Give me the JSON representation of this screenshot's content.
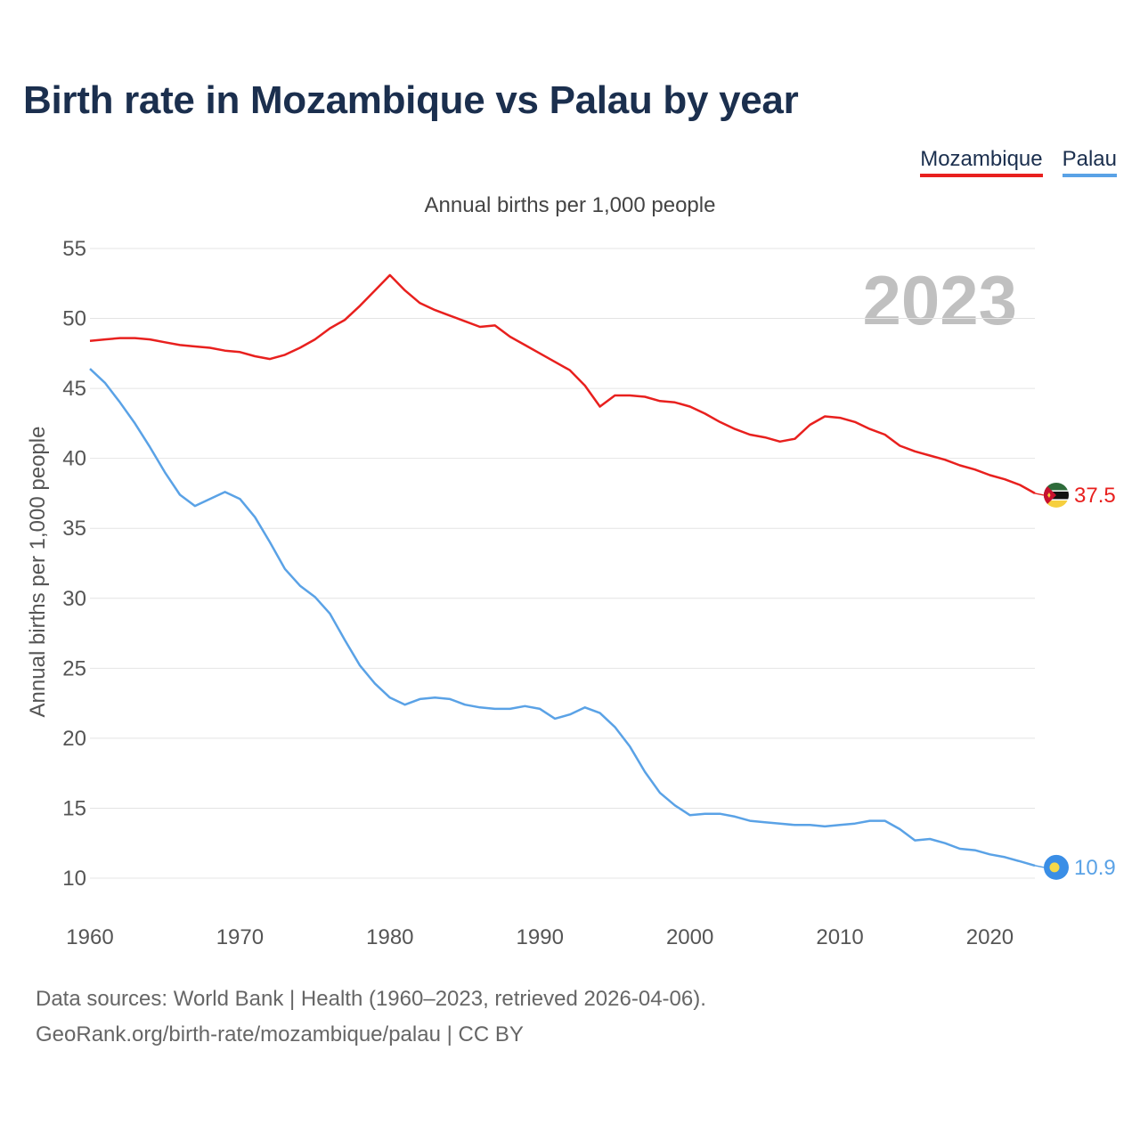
{
  "title": "Birth rate in Mozambique vs Palau by year",
  "subtitle": "Annual births per 1,000 people",
  "year_label": "2023",
  "legend": [
    {
      "label": "Mozambique",
      "color": "#e8201e"
    },
    {
      "label": "Palau",
      "color": "#5aa2e6"
    }
  ],
  "source_line1": "Data sources: World Bank | Health (1960–2023, retrieved 2026-04-06).",
  "source_line2": "GeoRank.org/birth-rate/mozambique/palau | CC BY",
  "chart_data": {
    "type": "line",
    "title": "Birth rate in Mozambique vs Palau by year",
    "xlabel": "",
    "ylabel": "Annual births per 1,000 people",
    "xlim": [
      1960,
      2023
    ],
    "ylim": [
      10,
      55
    ],
    "x_ticks": [
      1960,
      1970,
      1980,
      1990,
      2000,
      2010,
      2020
    ],
    "y_ticks": [
      10,
      15,
      20,
      25,
      30,
      35,
      40,
      45,
      50,
      55
    ],
    "grid": true,
    "legend_position": "top-right",
    "x": [
      1960,
      1961,
      1962,
      1963,
      1964,
      1965,
      1966,
      1967,
      1968,
      1969,
      1970,
      1971,
      1972,
      1973,
      1974,
      1975,
      1976,
      1977,
      1978,
      1979,
      1980,
      1981,
      1982,
      1983,
      1984,
      1985,
      1986,
      1987,
      1988,
      1989,
      1990,
      1991,
      1992,
      1993,
      1994,
      1995,
      1996,
      1997,
      1998,
      1999,
      2000,
      2001,
      2002,
      2003,
      2004,
      2005,
      2006,
      2007,
      2008,
      2009,
      2010,
      2011,
      2012,
      2013,
      2014,
      2015,
      2016,
      2017,
      2018,
      2019,
      2020,
      2021,
      2022,
      2023
    ],
    "series": [
      {
        "name": "Mozambique",
        "color": "#e8201e",
        "end_label": "37.5",
        "values": [
          48.4,
          48.5,
          48.6,
          48.6,
          48.5,
          48.3,
          48.1,
          48.0,
          47.9,
          47.7,
          47.6,
          47.3,
          47.1,
          47.4,
          47.9,
          48.5,
          49.3,
          49.9,
          50.9,
          52.0,
          53.1,
          52.0,
          51.1,
          50.6,
          50.2,
          49.8,
          49.4,
          49.5,
          48.7,
          48.1,
          47.5,
          46.9,
          46.3,
          45.2,
          43.7,
          44.5,
          44.5,
          44.4,
          44.1,
          44.0,
          43.7,
          43.2,
          42.6,
          42.1,
          41.7,
          41.5,
          41.2,
          41.4,
          42.4,
          43.0,
          42.9,
          42.6,
          42.1,
          41.7,
          40.9,
          40.5,
          40.2,
          39.9,
          39.5,
          39.2,
          38.8,
          38.5,
          38.1,
          37.5
        ]
      },
      {
        "name": "Palau",
        "color": "#5aa2e6",
        "end_label": "10.9",
        "values": [
          46.4,
          45.4,
          44.0,
          42.5,
          40.8,
          39.0,
          37.4,
          36.6,
          37.1,
          37.6,
          37.1,
          35.8,
          34.0,
          32.1,
          30.9,
          30.1,
          28.9,
          27.0,
          25.2,
          23.9,
          22.9,
          22.4,
          22.8,
          22.9,
          22.8,
          22.4,
          22.2,
          22.1,
          22.1,
          22.3,
          22.1,
          21.4,
          21.7,
          22.2,
          21.8,
          20.8,
          19.4,
          17.6,
          16.1,
          15.2,
          14.5,
          14.6,
          14.6,
          14.4,
          14.1,
          14.0,
          13.9,
          13.8,
          13.8,
          13.7,
          13.8,
          13.9,
          14.1,
          14.1,
          13.5,
          12.7,
          12.8,
          12.5,
          12.1,
          12.0,
          11.7,
          11.5,
          11.2,
          10.9
        ]
      }
    ]
  }
}
